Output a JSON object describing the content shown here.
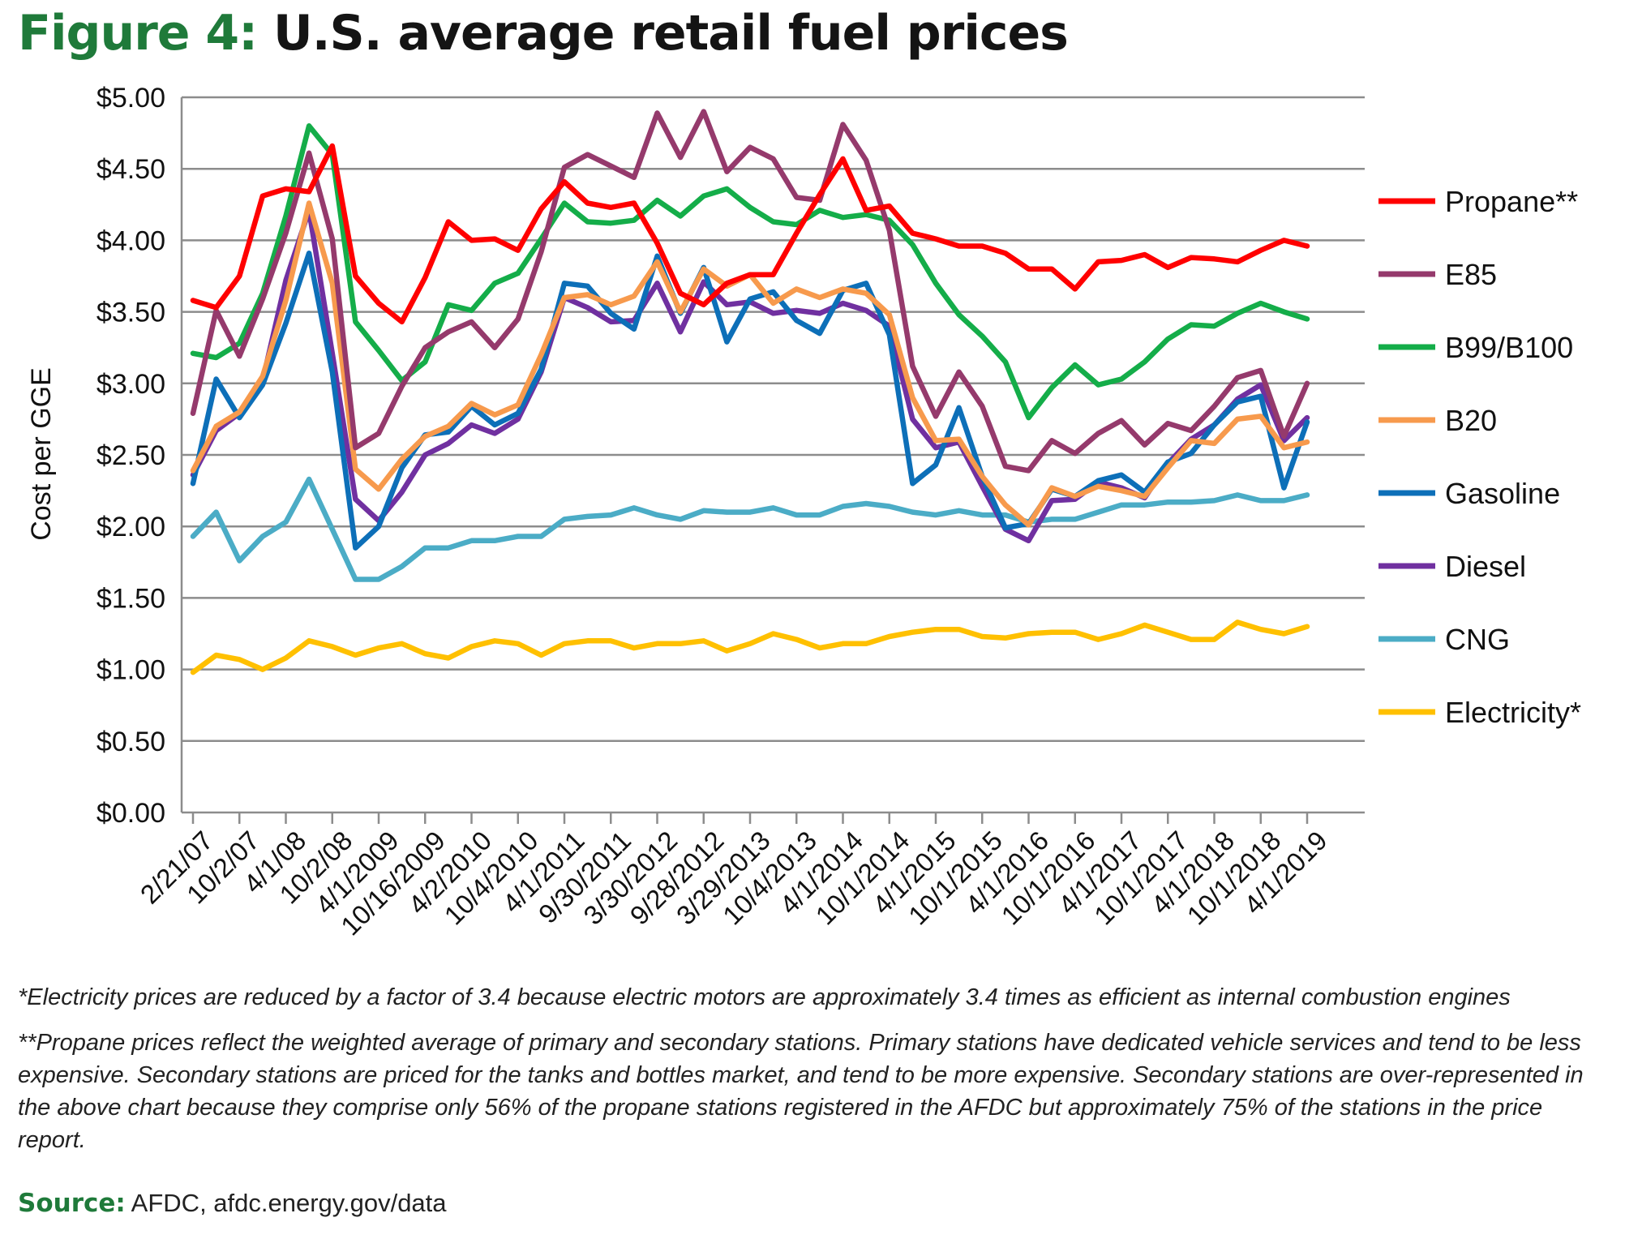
{
  "figure": {
    "title_lead": "Figure 4:",
    "title_main": "U.S. average retail fuel prices",
    "lead_color": "#1f7a3a"
  },
  "chart_data": {
    "type": "line",
    "title": "U.S. average retail fuel prices",
    "ylabel": "Cost per GGE",
    "xlabel": "",
    "ylim": [
      0,
      5
    ],
    "yticks": [
      "$0.00",
      "$0.50",
      "$1.00",
      "$1.50",
      "$2.00",
      "$2.50",
      "$3.00",
      "$3.50",
      "$4.00",
      "$4.50",
      "$5.00"
    ],
    "grid": "horizontal",
    "legend_position": "right",
    "x_tick_labels": [
      "2/21/07",
      "10/2/07",
      "4/1/08",
      "10/2/08",
      "4/1/2009",
      "10/16/2009",
      "4/2/2010",
      "10/4/2010",
      "4/1/2011",
      "9/30/2011",
      "3/30/2012",
      "9/28/2012",
      "3/29/2013",
      "10/4/2013",
      "4/1/2014",
      "10/1/2014",
      "4/1/2015",
      "10/1/2015",
      "4/1/2016",
      "10/1/2016",
      "4/1/2017",
      "10/1/2017",
      "4/1/2018",
      "10/1/2018",
      "4/1/2019"
    ],
    "series": [
      {
        "name": "Propane**",
        "color": "#ff0000",
        "values": [
          3.58,
          3.53,
          3.75,
          4.31,
          4.36,
          4.34,
          4.66,
          3.75,
          3.56,
          3.43,
          3.74,
          4.13,
          4.0,
          4.01,
          3.93,
          4.22,
          4.41,
          4.26,
          4.23,
          4.26,
          3.98,
          3.63,
          3.55,
          3.7,
          3.76,
          3.76,
          4.05,
          4.32,
          4.57,
          4.21,
          4.24,
          4.05,
          4.01,
          3.96,
          3.96,
          3.91,
          3.8,
          3.8,
          3.66,
          3.85,
          3.86,
          3.9,
          3.81,
          3.88,
          3.87,
          3.85,
          3.93,
          4.0,
          3.96
        ]
      },
      {
        "name": "E85",
        "color": "#953a6c",
        "values": [
          2.79,
          3.51,
          3.19,
          3.59,
          4.05,
          4.61,
          4.01,
          2.55,
          2.65,
          2.98,
          3.25,
          3.36,
          3.43,
          3.25,
          3.45,
          3.92,
          4.51,
          4.6,
          4.52,
          4.44,
          4.89,
          4.58,
          4.9,
          4.48,
          4.65,
          4.57,
          4.3,
          4.28,
          4.81,
          4.56,
          4.07,
          3.12,
          2.77,
          3.08,
          2.84,
          2.42,
          2.39,
          2.6,
          2.51,
          2.65,
          2.74,
          2.57,
          2.72,
          2.67,
          2.84,
          3.04,
          3.09,
          2.63,
          3.0
        ]
      },
      {
        "name": "B99/B100",
        "color": "#14ad49",
        "values": [
          3.21,
          3.18,
          3.28,
          3.63,
          4.17,
          4.8,
          4.6,
          3.43,
          3.23,
          3.02,
          3.15,
          3.55,
          3.51,
          3.7,
          3.77,
          4.01,
          4.26,
          4.13,
          4.12,
          4.14,
          4.28,
          4.17,
          4.31,
          4.36,
          4.23,
          4.13,
          4.11,
          4.21,
          4.16,
          4.18,
          4.14,
          3.97,
          3.7,
          3.48,
          3.33,
          3.15,
          2.76,
          2.97,
          3.13,
          2.99,
          3.03,
          3.15,
          3.31,
          3.41,
          3.4,
          3.49,
          3.56,
          3.5,
          3.45
        ]
      },
      {
        "name": "B20",
        "color": "#f79a4d",
        "values": [
          2.39,
          2.7,
          2.8,
          3.05,
          3.58,
          4.26,
          3.7,
          2.4,
          2.26,
          2.47,
          2.63,
          2.7,
          2.86,
          2.78,
          2.85,
          3.2,
          3.6,
          3.62,
          3.55,
          3.61,
          3.85,
          3.5,
          3.8,
          3.68,
          3.76,
          3.56,
          3.66,
          3.6,
          3.66,
          3.63,
          3.48,
          2.9,
          2.6,
          2.61,
          2.35,
          2.15,
          2.01,
          2.27,
          2.21,
          2.28,
          2.25,
          2.21,
          2.41,
          2.6,
          2.58,
          2.75,
          2.77,
          2.55,
          2.59
        ]
      },
      {
        "name": "Gasoline",
        "color": "#0d6fb8",
        "values": [
          2.3,
          3.03,
          2.76,
          2.99,
          3.42,
          3.91,
          3.08,
          1.85,
          2.0,
          2.41,
          2.64,
          2.66,
          2.84,
          2.71,
          2.79,
          3.1,
          3.7,
          3.68,
          3.49,
          3.38,
          3.89,
          3.49,
          3.81,
          3.29,
          3.59,
          3.64,
          3.44,
          3.35,
          3.65,
          3.7,
          3.34,
          2.3,
          2.43,
          2.83,
          2.35,
          1.99,
          2.02,
          2.26,
          2.21,
          2.32,
          2.36,
          2.24,
          2.45,
          2.51,
          2.71,
          2.87,
          2.91,
          2.27,
          2.73
        ]
      },
      {
        "name": "Diesel",
        "color": "#7030a0",
        "values": [
          2.36,
          2.67,
          2.79,
          3.02,
          3.72,
          4.21,
          3.21,
          2.19,
          2.04,
          2.24,
          2.5,
          2.58,
          2.71,
          2.65,
          2.75,
          3.08,
          3.6,
          3.53,
          3.43,
          3.44,
          3.7,
          3.36,
          3.71,
          3.55,
          3.57,
          3.49,
          3.51,
          3.49,
          3.56,
          3.51,
          3.4,
          2.75,
          2.55,
          2.59,
          2.28,
          1.98,
          1.9,
          2.18,
          2.19,
          2.31,
          2.27,
          2.2,
          2.44,
          2.61,
          2.71,
          2.89,
          2.99,
          2.6,
          2.76
        ]
      },
      {
        "name": "CNG",
        "color": "#4bacc6",
        "values": [
          1.93,
          2.1,
          1.76,
          1.93,
          2.03,
          2.33,
          1.98,
          1.63,
          1.63,
          1.72,
          1.85,
          1.85,
          1.9,
          1.9,
          1.93,
          1.93,
          2.05,
          2.07,
          2.08,
          2.13,
          2.08,
          2.05,
          2.11,
          2.1,
          2.1,
          2.13,
          2.08,
          2.08,
          2.14,
          2.16,
          2.14,
          2.1,
          2.08,
          2.11,
          2.08,
          2.08,
          2.03,
          2.05,
          2.05,
          2.1,
          2.15,
          2.15,
          2.17,
          2.17,
          2.18,
          2.22,
          2.18,
          2.18,
          2.22
        ]
      },
      {
        "name": "Electricity*",
        "color": "#ffc000",
        "values": [
          0.98,
          1.1,
          1.07,
          1.0,
          1.08,
          1.2,
          1.16,
          1.1,
          1.15,
          1.18,
          1.11,
          1.08,
          1.16,
          1.2,
          1.18,
          1.1,
          1.18,
          1.2,
          1.2,
          1.15,
          1.18,
          1.18,
          1.2,
          1.13,
          1.18,
          1.25,
          1.21,
          1.15,
          1.18,
          1.18,
          1.23,
          1.26,
          1.28,
          1.28,
          1.23,
          1.22,
          1.25,
          1.26,
          1.26,
          1.21,
          1.25,
          1.31,
          1.26,
          1.21,
          1.21,
          1.33,
          1.28,
          1.25,
          1.3
        ]
      }
    ]
  },
  "notes": {
    "note1": "*Electricity prices are reduced by a factor of 3.4 because electric motors are approximately 3.4 times as efficient as internal combustion engines",
    "note2": "**Propane prices reflect the weighted average of primary and secondary stations. Primary stations have dedicated vehicle services and tend to be less expensive. Secondary stations are priced for the tanks and bottles market, and tend to be more expensive. Secondary stations are over-represented in the above chart because they comprise only 56% of the propane stations registered in the AFDC but approximately 75% of the stations in the price report."
  },
  "source": {
    "label": "Source:",
    "text": " AFDC, afdc.energy.gov/data"
  }
}
